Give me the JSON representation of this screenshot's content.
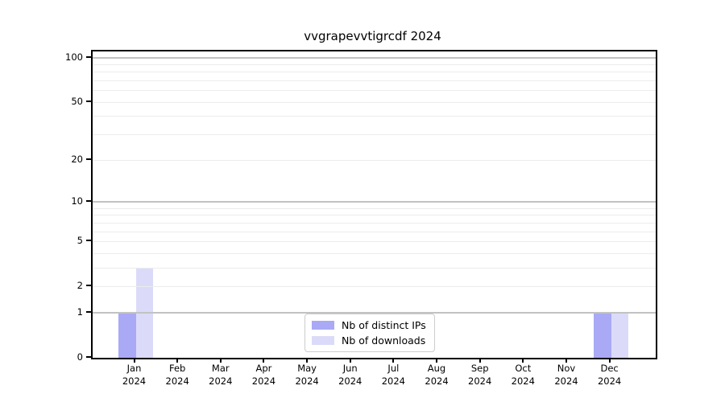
{
  "title": "vvgrapevvtigrcdf 2024",
  "legend": {
    "items": [
      {
        "label": "Nb of distinct IPs",
        "color": "#a9a9f6"
      },
      {
        "label": "Nb of downloads",
        "color": "#dbdbf9"
      }
    ]
  },
  "chart_data": {
    "type": "bar",
    "title": "vvgrapevvtigrcdf 2024",
    "months": [
      "Jan",
      "Feb",
      "Mar",
      "Apr",
      "May",
      "Jun",
      "Jul",
      "Aug",
      "Sep",
      "Oct",
      "Nov",
      "Dec"
    ],
    "year_label": "2024",
    "categories": [
      "Jan 2024",
      "Feb 2024",
      "Mar 2024",
      "Apr 2024",
      "May 2024",
      "Jun 2024",
      "Jul 2024",
      "Aug 2024",
      "Sep 2024",
      "Oct 2024",
      "Nov 2024",
      "Dec 2024"
    ],
    "series": [
      {
        "name": "Nb of distinct IPs",
        "color": "#a9a9f6",
        "values": [
          1,
          0,
          0,
          0,
          0,
          0,
          0,
          0,
          0,
          0,
          0,
          1
        ]
      },
      {
        "name": "Nb of downloads",
        "color": "#dbdbf9",
        "values": [
          3,
          0,
          0,
          0,
          0,
          0,
          0,
          0,
          0,
          0,
          0,
          1
        ]
      }
    ],
    "ylabel": "",
    "xlabel": "",
    "yscale": "log1p",
    "ylim": [
      0,
      111
    ],
    "yticks": [
      0,
      1,
      2,
      5,
      10,
      20,
      50,
      100
    ],
    "gridlines": {
      "major": [
        1,
        10,
        100
      ],
      "minor": [
        2,
        3,
        4,
        5,
        6,
        7,
        8,
        9,
        20,
        30,
        40,
        50,
        60,
        70,
        80,
        90
      ]
    },
    "grid": true,
    "legend_position": "lower center",
    "colors": {
      "grid_major": "#c2c2c2",
      "grid_minor": "#ececec",
      "spine": "#000000",
      "background": "#ffffff"
    }
  }
}
